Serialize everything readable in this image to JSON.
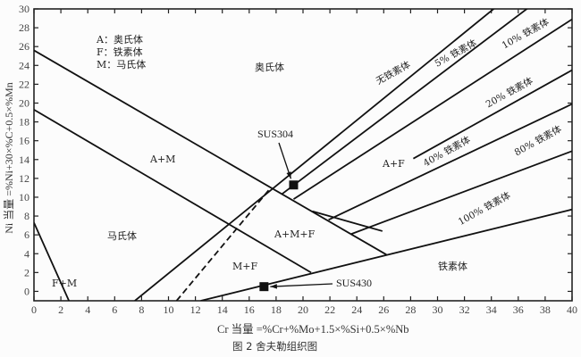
{
  "caption": "图 2   舍夫勒组织图",
  "diagram": {
    "xlabel": "Cr 当量 =%Cr+%Mo+1.5×%Si+0.5×%Nb",
    "ylabel": "Ni 当量 =%Ni+30×%C+0.5×%Mn",
    "xlim": [
      0,
      40
    ],
    "ylim": [
      -1,
      30
    ],
    "x_ticks": [
      0,
      2,
      4,
      6,
      8,
      10,
      12,
      14,
      16,
      18,
      20,
      22,
      24,
      26,
      28,
      30,
      32,
      34,
      36,
      38,
      40
    ],
    "y_ticks": [
      0,
      2,
      4,
      6,
      8,
      10,
      12,
      14,
      16,
      18,
      20,
      22,
      24,
      26,
      28,
      30
    ],
    "legend": [
      "A：奥氏体",
      "F：铁素体",
      "M：马氏体"
    ],
    "lines": [
      {
        "id": "austenite-boundary",
        "points": [
          [
            0,
            25.6
          ],
          [
            26.2,
            3.9
          ]
        ],
        "style": "solid"
      },
      {
        "id": "martensite-boundary",
        "points": [
          [
            0,
            19.3
          ],
          [
            20.6,
            2.0
          ]
        ],
        "style": "solid"
      },
      {
        "id": "ferrite-martensite-boundary",
        "points": [
          [
            0,
            7.3
          ],
          [
            2.6,
            -1
          ]
        ],
        "style": "solid"
      },
      {
        "id": "ferrite-boundary",
        "points": [
          [
            12.4,
            -1
          ],
          [
            40,
            8.7
          ]
        ],
        "style": "solid"
      },
      {
        "id": "no-ferrite",
        "points": [
          [
            7.5,
            -1
          ],
          [
            34.6,
            30.5
          ]
        ],
        "style": "solid"
      },
      {
        "id": "dashed",
        "points": [
          [
            10.6,
            -1
          ],
          [
            17.6,
            11.0
          ]
        ],
        "style": "dashed"
      },
      {
        "id": "ferrite-5",
        "points": [
          [
            18.4,
            10.3
          ],
          [
            37.1,
            30.5
          ]
        ],
        "style": "solid"
      },
      {
        "id": "ferrite-10",
        "points": [
          [
            19.3,
            9.8
          ],
          [
            40,
            28.9
          ]
        ],
        "style": "solid"
      },
      {
        "id": "ferrite-20-a",
        "points": [
          [
            20.7,
            8.5
          ],
          [
            25.9,
            6.4
          ]
        ],
        "style": "solid"
      },
      {
        "id": "ferrite-20-b",
        "points": [
          [
            28.2,
            14.1
          ],
          [
            40,
            23.5
          ]
        ],
        "style": "solid"
      },
      {
        "id": "ferrite-40",
        "points": [
          [
            21.9,
            7.6
          ],
          [
            40,
            19.9
          ]
        ],
        "style": "solid"
      },
      {
        "id": "ferrite-80",
        "points": [
          [
            23.6,
            6.1
          ],
          [
            40,
            14.9
          ]
        ],
        "style": "solid"
      }
    ],
    "line_labels": [
      "无铁素体",
      "5% 铁素体",
      "10% 铁素体",
      "20% 铁素体",
      "40% 铁素体",
      "80% 铁素体",
      "100% 铁素体"
    ],
    "regions": {
      "A": "奥氏体",
      "AM": "A+M",
      "M": "马氏体",
      "FM": "F+M",
      "MF": "M+F",
      "AMF": "A+M+F",
      "AF": "A+F",
      "F": "铁素体"
    },
    "points": [
      {
        "name": "SUS304",
        "x": 19.3,
        "y": 11.3
      },
      {
        "name": "SUS430",
        "x": 17.1,
        "y": 0.5
      }
    ]
  }
}
